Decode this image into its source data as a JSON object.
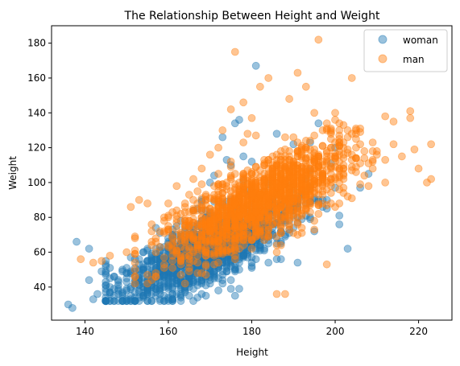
{
  "chart_data": {
    "type": "scatter",
    "title": "The Relationship Between Height and Weight",
    "xlabel": "Height",
    "ylabel": "Weight",
    "xlim": [
      132,
      228
    ],
    "ylim": [
      21,
      190
    ],
    "xticks": [
      140,
      160,
      180,
      200,
      220
    ],
    "yticks": [
      40,
      60,
      80,
      100,
      120,
      140,
      160,
      180
    ],
    "grid": false,
    "legend_position": "top-right",
    "marker_alpha": 0.45,
    "series": [
      {
        "name": "woman",
        "color": "#1f77b4",
        "core_points": [
          [
            136,
            30
          ],
          [
            137,
            28
          ],
          [
            138,
            66
          ],
          [
            141,
            62
          ],
          [
            141,
            44
          ],
          [
            142,
            33
          ],
          [
            143,
            36
          ],
          [
            144,
            49
          ],
          [
            146,
            40
          ],
          [
            149,
            36
          ],
          [
            150,
            33
          ],
          [
            152,
            44
          ],
          [
            153,
            43
          ],
          [
            155,
            42
          ],
          [
            156,
            47
          ],
          [
            158,
            48
          ],
          [
            160,
            50
          ],
          [
            163,
            78
          ],
          [
            165,
            74
          ],
          [
            166,
            84
          ],
          [
            168,
            90
          ],
          [
            170,
            100
          ],
          [
            171,
            104
          ],
          [
            173,
            126
          ],
          [
            174,
            113
          ],
          [
            175,
            110
          ],
          [
            176,
            134
          ],
          [
            177,
            136
          ],
          [
            178,
            115
          ],
          [
            180,
            112
          ],
          [
            181,
            167
          ],
          [
            186,
            128
          ],
          [
            190,
            122
          ],
          [
            194,
            123
          ],
          [
            196,
            134
          ],
          [
            200,
            120
          ],
          [
            203,
            62
          ],
          [
            206,
            97
          ],
          [
            208,
            105
          ]
        ],
        "cloud": {
          "count": 1400,
          "x_mean": 169,
          "x_sd": 11,
          "slope": 1.08,
          "intercept": -122,
          "noise_sd": 10,
          "x_range": [
            145,
            206
          ],
          "y_range": [
            32,
            128
          ]
        }
      },
      {
        "name": "man",
        "color": "#ff7f0e",
        "core_points": [
          [
            139,
            56
          ],
          [
            142,
            54
          ],
          [
            144,
            55
          ],
          [
            146,
            58
          ],
          [
            150,
            60
          ],
          [
            151,
            86
          ],
          [
            153,
            90
          ],
          [
            155,
            88
          ],
          [
            158,
            72
          ],
          [
            160,
            80
          ],
          [
            162,
            98
          ],
          [
            164,
            62
          ],
          [
            166,
            102
          ],
          [
            168,
            108
          ],
          [
            170,
            116
          ],
          [
            172,
            120
          ],
          [
            173,
            130
          ],
          [
            175,
            142
          ],
          [
            176,
            175
          ],
          [
            178,
            146
          ],
          [
            179,
            128
          ],
          [
            180,
            137
          ],
          [
            181,
            127
          ],
          [
            182,
            155
          ],
          [
            184,
            160
          ],
          [
            186,
            36
          ],
          [
            188,
            36
          ],
          [
            189,
            148
          ],
          [
            191,
            163
          ],
          [
            193,
            155
          ],
          [
            195,
            140
          ],
          [
            196,
            182
          ],
          [
            198,
            131
          ],
          [
            200,
            140
          ],
          [
            201,
            125
          ],
          [
            204,
            160
          ],
          [
            206,
            131
          ],
          [
            210,
            118
          ],
          [
            212,
            138
          ],
          [
            214,
            122
          ],
          [
            216,
            115
          ],
          [
            218,
            141
          ],
          [
            220,
            108
          ],
          [
            222,
            100
          ],
          [
            223,
            122
          ],
          [
            223,
            102
          ]
        ],
        "cloud": {
          "count": 1500,
          "x_mean": 182,
          "x_sd": 11,
          "slope": 1.12,
          "intercept": -115,
          "noise_sd": 11,
          "x_range": [
            152,
            222
          ],
          "y_range": [
            42,
            150
          ]
        }
      }
    ]
  }
}
